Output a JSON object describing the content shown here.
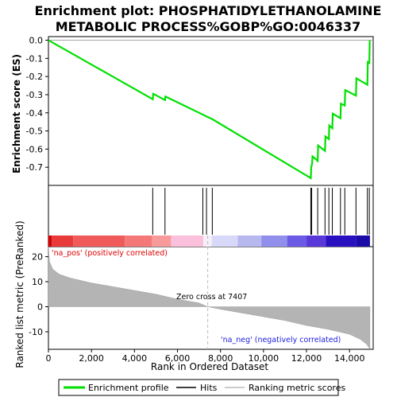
{
  "chart_data": {
    "type": "line",
    "title": "Enrichment plot: PHOSPHATIDYLETHANOLAMINE",
    "subtitle": "METABOLIC PROCESS%GOBP%GO:0046337",
    "es_panel": {
      "ylabel": "Enrichment score (ES)",
      "ylim": [
        -0.8,
        0.02
      ],
      "yticks": [
        "0.0",
        "-0.1",
        "-0.2",
        "-0.3",
        "-0.4",
        "-0.5",
        "-0.6",
        "-0.7"
      ],
      "ytick_values": [
        0.0,
        -0.1,
        -0.2,
        -0.3,
        -0.4,
        -0.5,
        -0.6,
        -0.7
      ],
      "series_name": "Enrichment profile",
      "color": "#00e000",
      "points": [
        [
          0,
          0.0
        ],
        [
          4850,
          -0.325
        ],
        [
          4870,
          -0.295
        ],
        [
          5420,
          -0.33
        ],
        [
          5440,
          -0.31
        ],
        [
          7180,
          -0.41
        ],
        [
          7350,
          -0.42
        ],
        [
          7620,
          -0.435
        ],
        [
          12200,
          -0.76
        ],
        [
          12220,
          -0.7
        ],
        [
          12260,
          -0.68
        ],
        [
          12280,
          -0.64
        ],
        [
          12520,
          -0.665
        ],
        [
          12540,
          -0.58
        ],
        [
          12860,
          -0.61
        ],
        [
          12880,
          -0.53
        ],
        [
          13040,
          -0.545
        ],
        [
          13060,
          -0.47
        ],
        [
          13200,
          -0.485
        ],
        [
          13220,
          -0.405
        ],
        [
          13580,
          -0.43
        ],
        [
          13600,
          -0.35
        ],
        [
          13780,
          -0.36
        ],
        [
          13800,
          -0.275
        ],
        [
          14300,
          -0.305
        ],
        [
          14320,
          -0.21
        ],
        [
          14830,
          -0.245
        ],
        [
          14850,
          -0.12
        ],
        [
          14920,
          -0.125
        ],
        [
          14940,
          0.0
        ]
      ]
    },
    "hits": [
      4850,
      5420,
      7180,
      7350,
      7620,
      12200,
      12240,
      12520,
      12860,
      13040,
      13200,
      13580,
      13780,
      14300,
      14830,
      14920
    ],
    "ranked_panel": {
      "ylabel": "Ranked list metric (PreRanked)",
      "xlabel": "Rank in Ordered Dataset",
      "ylim": [
        -17,
        24
      ],
      "yticks": [
        "20",
        "10",
        "0",
        "-10"
      ],
      "ytick_values": [
        20,
        10,
        0,
        -10
      ],
      "xlim": [
        0,
        15100
      ],
      "xticks": [
        "0",
        "2,000",
        "4,000",
        "6,000",
        "8,000",
        "10,000",
        "12,000",
        "14,000"
      ],
      "xtick_values": [
        0,
        2000,
        4000,
        6000,
        8000,
        10000,
        12000,
        14000
      ],
      "metric_points": [
        [
          0,
          24
        ],
        [
          50,
          18
        ],
        [
          200,
          15
        ],
        [
          500,
          13
        ],
        [
          1000,
          11.5
        ],
        [
          2000,
          9.5
        ],
        [
          3000,
          8
        ],
        [
          4000,
          6.5
        ],
        [
          5000,
          5
        ],
        [
          6000,
          3
        ],
        [
          7000,
          1.5
        ],
        [
          7407,
          0
        ],
        [
          8000,
          -1
        ],
        [
          9000,
          -2.5
        ],
        [
          10000,
          -4
        ],
        [
          11000,
          -5.5
        ],
        [
          12000,
          -7.5
        ],
        [
          13000,
          -9
        ],
        [
          14000,
          -11
        ],
        [
          14500,
          -13
        ],
        [
          14800,
          -15
        ],
        [
          14950,
          -17
        ]
      ],
      "pos_label": "'na_pos' (positively correlated)",
      "neg_label": "'na_neg' (negatively correlated)",
      "zero_cross_label": "Zero cross at 7407",
      "zero_cross": 7407
    },
    "heatmap_bands": [
      {
        "from": 0,
        "to": 150,
        "color": "#d80000"
      },
      {
        "from": 150,
        "to": 1150,
        "color": "#e83a3a"
      },
      {
        "from": 1150,
        "to": 3550,
        "color": "#f05a5a"
      },
      {
        "from": 3550,
        "to": 4800,
        "color": "#f57878"
      },
      {
        "from": 4800,
        "to": 5700,
        "color": "#f89a9a"
      },
      {
        "from": 5700,
        "to": 7200,
        "color": "#fbc0dc"
      },
      {
        "from": 7200,
        "to": 7600,
        "color": "#f5f0f8"
      },
      {
        "from": 7600,
        "to": 8800,
        "color": "#d8d8f8"
      },
      {
        "from": 8800,
        "to": 9900,
        "color": "#b8b8f0"
      },
      {
        "from": 9900,
        "to": 11100,
        "color": "#9090ec"
      },
      {
        "from": 11100,
        "to": 12000,
        "color": "#6a5ae6"
      },
      {
        "from": 12000,
        "to": 12900,
        "color": "#5838d8"
      },
      {
        "from": 12900,
        "to": 14300,
        "color": "#2810c0"
      },
      {
        "from": 14300,
        "to": 14950,
        "color": "#1a0aa8"
      }
    ],
    "legend": {
      "placement": "bottom",
      "items": [
        {
          "label": "Enrichment profile",
          "color": "#00e000"
        },
        {
          "label": "Hits",
          "color": "#000000"
        },
        {
          "label": "Ranking metric scores",
          "color": "#bbbbbb"
        }
      ]
    }
  }
}
